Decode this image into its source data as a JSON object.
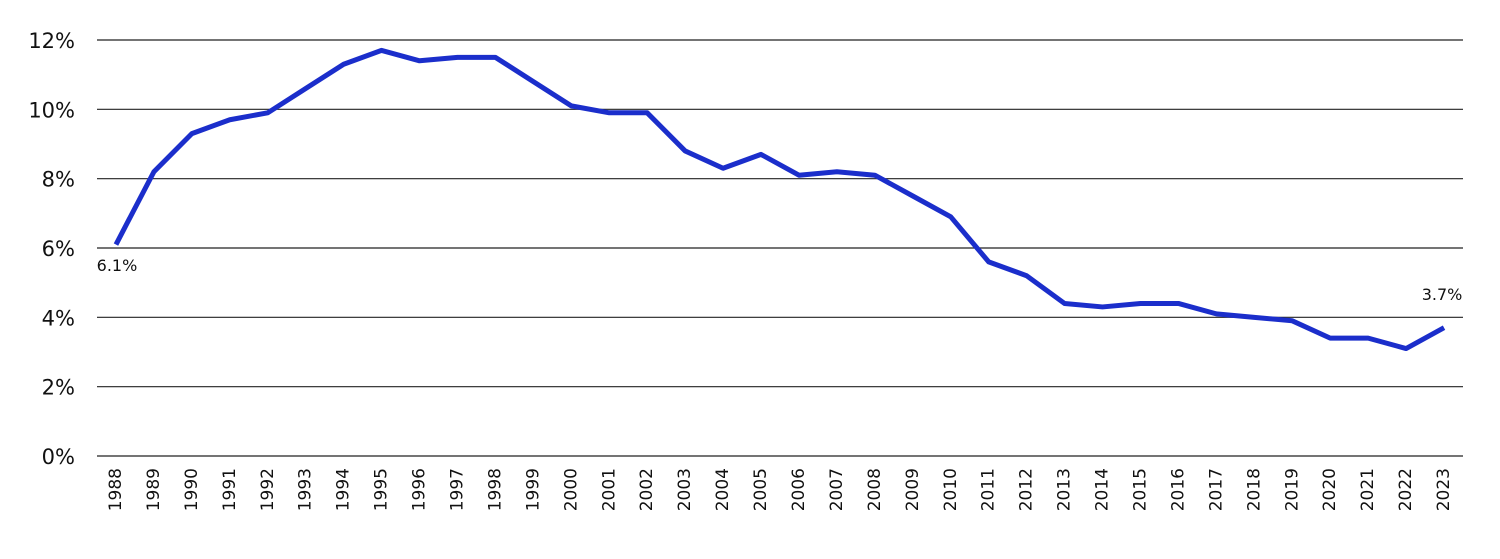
{
  "chart_data": {
    "type": "line",
    "x": [
      1988,
      1989,
      1990,
      1991,
      1992,
      1993,
      1994,
      1995,
      1996,
      1997,
      1998,
      1999,
      2000,
      2001,
      2002,
      2003,
      2004,
      2005,
      2006,
      2007,
      2008,
      2009,
      2010,
      2011,
      2012,
      2013,
      2014,
      2015,
      2016,
      2017,
      2018,
      2019,
      2020,
      2021,
      2022,
      2023
    ],
    "xlim": [
      1987.5,
      2023.5
    ],
    "series": [
      {
        "color": "#1b2ecb",
        "values": [
          6.1,
          8.2,
          9.3,
          9.7,
          9.9,
          10.6,
          11.3,
          11.7,
          11.4,
          11.5,
          11.5,
          10.8,
          10.1,
          9.9,
          9.9,
          8.8,
          8.3,
          8.7,
          8.1,
          8.2,
          8.1,
          7.5,
          6.9,
          5.6,
          5.2,
          4.4,
          4.3,
          4.4,
          4.4,
          4.1,
          4.0,
          3.9,
          3.4,
          3.4,
          3.1,
          3.7
        ],
        "value_labels": [
          "6.1%",
          null,
          null,
          null,
          null,
          null,
          null,
          null,
          null,
          null,
          null,
          null,
          null,
          null,
          null,
          null,
          null,
          null,
          null,
          null,
          null,
          null,
          null,
          null,
          null,
          null,
          null,
          null,
          null,
          null,
          null,
          null,
          null,
          null,
          null,
          "3.7%"
        ]
      }
    ],
    "ylim": [
      0,
      12
    ],
    "yticks": [
      {
        "value": 0,
        "label": "0%"
      },
      {
        "value": 2,
        "label": "2%"
      },
      {
        "value": 4,
        "label": "4%"
      },
      {
        "value": 6,
        "label": "6%"
      },
      {
        "value": 8,
        "label": "8%"
      },
      {
        "value": 10,
        "label": "10%"
      },
      {
        "value": 12,
        "label": "12%"
      }
    ],
    "grid": true
  }
}
